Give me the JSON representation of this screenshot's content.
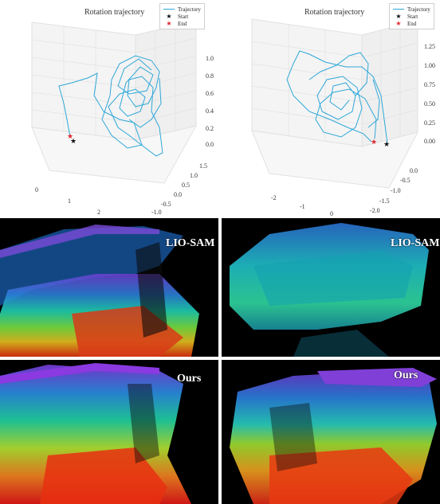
{
  "plots": [
    {
      "title": "Rotation trajectory",
      "legend": [
        {
          "label": "Trajectory",
          "icon": "line-icon"
        },
        {
          "label": "Start",
          "icon": "star-icon",
          "color": "#111111"
        },
        {
          "label": "End",
          "icon": "star-icon",
          "color": "#e0282e"
        }
      ],
      "z_ticks": [
        "1.0",
        "0.8",
        "0.6",
        "0.4",
        "0.2",
        "0.0"
      ],
      "y_ticks": [
        "1.5",
        "1.0",
        "0.5",
        "0.0",
        "-0.5",
        "-1.0"
      ],
      "x_ticks": [
        "0",
        "1",
        "2"
      ]
    },
    {
      "title": "Rotation trajectory",
      "legend": [
        {
          "label": "Trajectory",
          "icon": "line-icon"
        },
        {
          "label": "Start",
          "icon": "star-icon",
          "color": "#111111"
        },
        {
          "label": "End",
          "icon": "star-icon",
          "color": "#e0282e"
        }
      ],
      "z_ticks": [
        "1.25",
        "1.00",
        "0.75",
        "0.50",
        "0.25",
        "0.00"
      ],
      "y_ticks": [
        "0.0",
        "-0.5",
        "-1.0",
        "-1.5",
        "-2.0"
      ],
      "x_ticks": [
        "-2",
        "-1",
        "0"
      ]
    }
  ],
  "clouds": [
    {
      "label": "LIO-SAM"
    },
    {
      "label": "LIO-SAM"
    },
    {
      "label": "Ours"
    },
    {
      "label": "Ours"
    }
  ],
  "colors": {
    "trajectory": "#2fa8d8",
    "start": "#111111",
    "end": "#e0282e"
  }
}
